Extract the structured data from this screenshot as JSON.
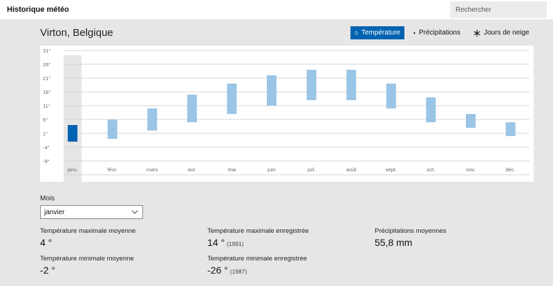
{
  "app": {
    "title": "Historique météo"
  },
  "search": {
    "placeholder": "Rechercher"
  },
  "location": "Virton, Belgique",
  "tabs": [
    {
      "label": "Température",
      "icon": "temperature-icon",
      "active": true
    },
    {
      "label": "Précipitations",
      "icon": "precipitation-icon",
      "active": false
    },
    {
      "label": "Jours de neige",
      "icon": "snowflake-icon",
      "active": false
    }
  ],
  "colors": {
    "accent": "#0063b1",
    "bar": "#9ac5e6",
    "selected_month_bg": "#e6e6e6"
  },
  "chart_data": {
    "type": "bar",
    "subtype": "floating-range",
    "categories": [
      "janv.",
      "févr.",
      "mars",
      "avr.",
      "mai",
      "juin",
      "juil.",
      "août",
      "sept.",
      "oct.",
      "nov.",
      "déc."
    ],
    "series": [
      {
        "name": "min",
        "values": [
          -2,
          -1,
          2,
          5,
          8,
          11,
          13,
          13,
          10,
          5,
          3,
          0
        ]
      },
      {
        "name": "max",
        "values": [
          4,
          6,
          10,
          15,
          19,
          22,
          24,
          24,
          19,
          14,
          8,
          5
        ]
      }
    ],
    "selected_index": 0,
    "y_ticks": [
      "31°",
      "26°",
      "21°",
      "16°",
      "11°",
      "6°",
      "1°",
      "-4°",
      "-9°"
    ],
    "y_tick_values": [
      31,
      26,
      21,
      16,
      11,
      6,
      1,
      -4,
      -9
    ],
    "ylim": [
      -14,
      33
    ],
    "grid": true
  },
  "month_picker": {
    "label": "Mois",
    "selected": "janvier"
  },
  "stats": {
    "avg_max": {
      "label": "Température maximale moyenne",
      "value": "4 °"
    },
    "avg_min": {
      "label": "Température minimale moyenne",
      "value": "-2 °"
    },
    "rec_max": {
      "label": "Température maximale enregistrée",
      "value": "14 °",
      "year": "(1991)"
    },
    "rec_min": {
      "label": "Température minimale enregistrée",
      "value": "-26 °",
      "year": "(1987)"
    },
    "precip": {
      "label": "Précipitations moyennes",
      "value": "55,8 mm"
    }
  }
}
